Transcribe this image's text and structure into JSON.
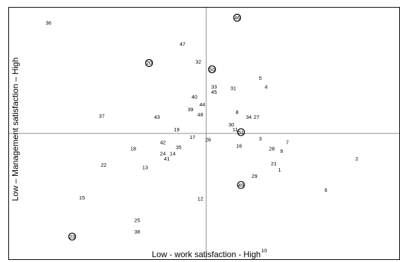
{
  "chart_data": {
    "type": "scatter",
    "title": "",
    "xlabel": "Low - work satisfaction - High",
    "ylabel": "Low – Management satisfaction – High",
    "xlim": [
      -1,
      1
    ],
    "ylim": [
      -1,
      1
    ],
    "grid": false,
    "legend": "none",
    "quadrant_lines": {
      "x": 0,
      "y": 0
    },
    "points": [
      {
        "label": "1",
        "x": 0.38,
        "y": -0.29,
        "circled": false
      },
      {
        "label": "2",
        "x": 0.78,
        "y": -0.2,
        "circled": false
      },
      {
        "label": "3",
        "x": 0.28,
        "y": -0.04,
        "circled": false
      },
      {
        "label": "4",
        "x": 0.31,
        "y": 0.37,
        "circled": false
      },
      {
        "label": "5",
        "x": 0.28,
        "y": 0.44,
        "circled": false
      },
      {
        "label": "6",
        "x": 0.62,
        "y": -0.45,
        "circled": false
      },
      {
        "label": "7",
        "x": 0.42,
        "y": -0.07,
        "circled": false
      },
      {
        "label": "8",
        "x": 0.16,
        "y": 0.17,
        "circled": false
      },
      {
        "label": "9",
        "x": 0.39,
        "y": -0.14,
        "circled": false
      },
      {
        "label": "10",
        "x": 0.3,
        "y": -0.93,
        "circled": false
      },
      {
        "label": "11",
        "x": 0.15,
        "y": 0.03,
        "circled": false
      },
      {
        "label": "12",
        "x": -0.03,
        "y": -0.52,
        "circled": false
      },
      {
        "label": "13",
        "x": -0.31,
        "y": -0.27,
        "circled": false
      },
      {
        "label": "14",
        "x": -0.17,
        "y": -0.16,
        "circled": false
      },
      {
        "label": "15",
        "x": -0.63,
        "y": -0.51,
        "circled": false
      },
      {
        "label": "16",
        "x": 0.17,
        "y": -0.1,
        "circled": false
      },
      {
        "label": "17",
        "x": -0.07,
        "y": -0.03,
        "circled": false
      },
      {
        "label": "18",
        "x": -0.37,
        "y": -0.12,
        "circled": false
      },
      {
        "label": "19",
        "x": -0.15,
        "y": 0.03,
        "circled": false
      },
      {
        "label": "20",
        "x": -0.29,
        "y": 0.56,
        "circled": true
      },
      {
        "label": "21",
        "x": 0.35,
        "y": -0.24,
        "circled": false
      },
      {
        "label": "22",
        "x": -0.52,
        "y": -0.25,
        "circled": false
      },
      {
        "label": "23",
        "x": -0.68,
        "y": -0.82,
        "circled": true
      },
      {
        "label": "24",
        "x": -0.22,
        "y": -0.16,
        "circled": false
      },
      {
        "label": "25",
        "x": -0.35,
        "y": -0.69,
        "circled": false
      },
      {
        "label": "26",
        "x": 0.01,
        "y": -0.05,
        "circled": false
      },
      {
        "label": "27",
        "x": 0.26,
        "y": 0.13,
        "circled": false
      },
      {
        "label": "28",
        "x": 0.34,
        "y": -0.12,
        "circled": false
      },
      {
        "label": "29",
        "x": 0.25,
        "y": -0.34,
        "circled": false
      },
      {
        "label": "30",
        "x": 0.13,
        "y": 0.07,
        "circled": false
      },
      {
        "label": "31",
        "x": 0.14,
        "y": 0.36,
        "circled": false
      },
      {
        "label": "32",
        "x": -0.04,
        "y": 0.57,
        "circled": false
      },
      {
        "label": "33",
        "x": 0.04,
        "y": 0.37,
        "circled": false
      },
      {
        "label": "34",
        "x": 0.22,
        "y": 0.13,
        "circled": false
      },
      {
        "label": "35",
        "x": -0.14,
        "y": -0.11,
        "circled": false
      },
      {
        "label": "36",
        "x": -0.8,
        "y": 0.88,
        "circled": false
      },
      {
        "label": "37",
        "x": -0.53,
        "y": 0.14,
        "circled": false
      },
      {
        "label": "38",
        "x": -0.35,
        "y": -0.78,
        "circled": false
      },
      {
        "label": "39",
        "x": -0.08,
        "y": 0.19,
        "circled": false
      },
      {
        "label": "40",
        "x": -0.06,
        "y": 0.29,
        "circled": false
      },
      {
        "label": "41",
        "x": -0.2,
        "y": -0.2,
        "circled": false
      },
      {
        "label": "42",
        "x": -0.22,
        "y": -0.07,
        "circled": false
      },
      {
        "label": "43",
        "x": -0.25,
        "y": 0.13,
        "circled": false
      },
      {
        "label": "44",
        "x": -0.02,
        "y": 0.23,
        "circled": false
      },
      {
        "label": "45",
        "x": 0.04,
        "y": 0.33,
        "circled": false
      },
      {
        "label": "46",
        "x": 0.16,
        "y": 0.92,
        "circled": true
      },
      {
        "label": "47",
        "x": -0.12,
        "y": 0.71,
        "circled": false
      },
      {
        "label": "48",
        "x": -0.03,
        "y": 0.15,
        "circled": false
      },
      {
        "label": "49",
        "x": 0.18,
        "y": -0.41,
        "circled": true
      },
      {
        "label": "50",
        "x": 0.03,
        "y": 0.51,
        "circled": true
      },
      {
        "label": "51",
        "x": 0.18,
        "y": 0.01,
        "circled": true
      }
    ]
  }
}
